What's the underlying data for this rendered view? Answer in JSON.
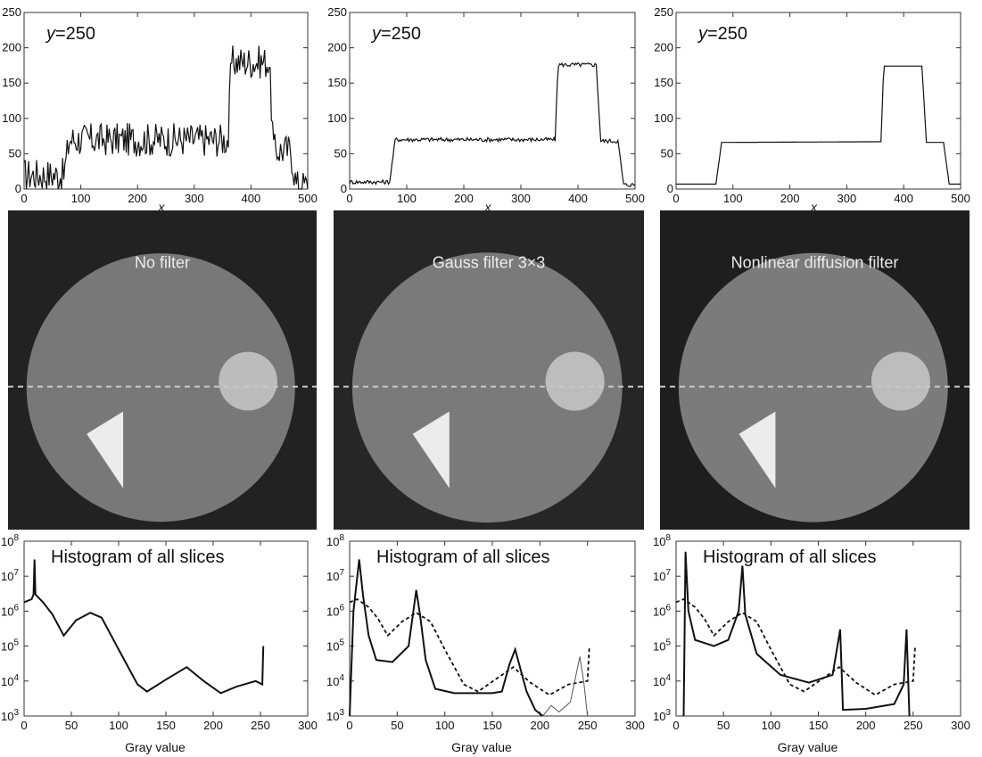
{
  "profile_charts": [
    {
      "type": "line",
      "annotation": "y=250",
      "xlabel": "x",
      "xlim": [
        0,
        500
      ],
      "ylim": [
        0,
        250
      ],
      "xticks": [
        0,
        100,
        200,
        300,
        400,
        500
      ],
      "yticks": [
        0,
        50,
        100,
        150,
        200,
        250
      ],
      "segments": [
        [
          0,
          20
        ],
        [
          70,
          20
        ],
        [
          80,
          70
        ],
        [
          360,
          70
        ],
        [
          365,
          180
        ],
        [
          432,
          180
        ],
        [
          440,
          55
        ],
        [
          470,
          55
        ],
        [
          480,
          5
        ],
        [
          500,
          5
        ]
      ],
      "noise": 24
    },
    {
      "type": "line",
      "annotation": "y=250",
      "xlabel": "x",
      "xlim": [
        0,
        500
      ],
      "ylim": [
        0,
        250
      ],
      "xticks": [
        0,
        100,
        200,
        300,
        400,
        500
      ],
      "yticks": [
        0,
        50,
        100,
        150,
        200,
        250
      ],
      "segments": [
        [
          0,
          10
        ],
        [
          70,
          10
        ],
        [
          80,
          70
        ],
        [
          360,
          70
        ],
        [
          365,
          176
        ],
        [
          432,
          176
        ],
        [
          440,
          68
        ],
        [
          470,
          68
        ],
        [
          480,
          6
        ],
        [
          500,
          6
        ]
      ],
      "noise": 3
    },
    {
      "type": "line",
      "annotation": "y=250",
      "xlabel": "x",
      "xlim": [
        0,
        500
      ],
      "ylim": [
        0,
        250
      ],
      "xticks": [
        0,
        100,
        200,
        300,
        400,
        500
      ],
      "yticks": [
        0,
        50,
        100,
        150,
        200,
        250
      ],
      "segments": [
        [
          0,
          7
        ],
        [
          70,
          7
        ],
        [
          80,
          66
        ],
        [
          360,
          67
        ],
        [
          365,
          174
        ],
        [
          432,
          174
        ],
        [
          440,
          66
        ],
        [
          470,
          66
        ],
        [
          480,
          7
        ],
        [
          500,
          7
        ]
      ],
      "noise": 0
    }
  ],
  "images": [
    {
      "title": "No filter",
      "background": "#222222",
      "disc": "#787878",
      "insert": "#bcbcbc",
      "triangle": "#ececec"
    },
    {
      "title": "Gauss filter 3×3",
      "background": "#262626",
      "disc": "#7a7a7a",
      "insert": "#bdbdbd",
      "triangle": "#ececec"
    },
    {
      "title": "Nonlinear diffusion filter",
      "background": "#1e1e1e",
      "disc": "#7b7b7b",
      "insert": "#bdbdbd",
      "triangle": "#ececec"
    }
  ],
  "histogram_charts": [
    {
      "type": "line",
      "annotation": "Histogram of all slices",
      "xlabel": "Gray value",
      "xlim": [
        0,
        300
      ],
      "yscale": "log",
      "ylim": [
        1000,
        100000000
      ],
      "xticks": [
        0,
        50,
        100,
        150,
        200,
        250,
        300
      ],
      "ytick_bases": [
        "10",
        "10",
        "10",
        "10",
        "10",
        "10"
      ],
      "ytick_exponents": [
        "3",
        "4",
        "5",
        "6",
        "7",
        "8"
      ],
      "series": [
        {
          "style": "solid",
          "points": [
            [
              0,
              1800000
            ],
            [
              8,
              2200000
            ],
            [
              10,
              3000000
            ],
            [
              11,
              30000000
            ],
            [
              12,
              3000000
            ],
            [
              20,
              1800000
            ],
            [
              30,
              800000
            ],
            [
              42,
              200000
            ],
            [
              55,
              550000
            ],
            [
              70,
              900000
            ],
            [
              82,
              650000
            ],
            [
              100,
              80000
            ],
            [
              120,
              8000
            ],
            [
              130,
              5000
            ],
            [
              150,
              11000
            ],
            [
              172,
              25000
            ],
            [
              190,
              10000
            ],
            [
              208,
              4500
            ],
            [
              225,
              7000
            ],
            [
              245,
              10000
            ],
            [
              252,
              8000
            ],
            [
              253,
              100000
            ]
          ]
        }
      ]
    },
    {
      "type": "line",
      "annotation": "Histogram of all slices",
      "xlabel": "Gray value",
      "xlim": [
        0,
        300
      ],
      "yscale": "log",
      "ylim": [
        1000,
        100000000
      ],
      "xticks": [
        0,
        50,
        100,
        150,
        200,
        250,
        300
      ],
      "ytick_bases": [
        "10",
        "10",
        "10",
        "10",
        "10",
        "10"
      ],
      "ytick_exponents": [
        "3",
        "4",
        "5",
        "6",
        "7",
        "8"
      ],
      "series": [
        {
          "style": "dashed",
          "points": [
            [
              0,
              1800000
            ],
            [
              8,
              2200000
            ],
            [
              20,
              1300000
            ],
            [
              30,
              600000
            ],
            [
              40,
              200000
            ],
            [
              55,
              500000
            ],
            [
              70,
              900000
            ],
            [
              85,
              500000
            ],
            [
              100,
              80000
            ],
            [
              120,
              8000
            ],
            [
              135,
              5000
            ],
            [
              155,
              12000
            ],
            [
              172,
              25000
            ],
            [
              190,
              9000
            ],
            [
              210,
              4000
            ],
            [
              230,
              8000
            ],
            [
              250,
              10000
            ],
            [
              252,
              100000
            ]
          ]
        },
        {
          "style": "solid",
          "points": [
            [
              0,
              1000
            ],
            [
              4,
              1000000
            ],
            [
              10,
              30000000
            ],
            [
              14,
              3000000
            ],
            [
              20,
              200000
            ],
            [
              28,
              40000
            ],
            [
              45,
              35000
            ],
            [
              62,
              100000
            ],
            [
              70,
              4000000
            ],
            [
              74,
              800000
            ],
            [
              80,
              40000
            ],
            [
              90,
              6000
            ],
            [
              110,
              4500
            ],
            [
              150,
              4500
            ],
            [
              160,
              5000
            ],
            [
              168,
              30000
            ],
            [
              174,
              80000
            ],
            [
              180,
              20000
            ],
            [
              186,
              5000
            ],
            [
              195,
              1500
            ],
            [
              203,
              1000
            ]
          ]
        },
        {
          "style": "thin",
          "points": [
            [
              203,
              1000
            ],
            [
              212,
              2000
            ],
            [
              220,
              1300
            ],
            [
              232,
              2500
            ],
            [
              242,
              50000
            ],
            [
              246,
              10000
            ],
            [
              250,
              1000
            ]
          ]
        }
      ]
    },
    {
      "type": "line",
      "annotation": "Histogram of all slices",
      "xlabel": "Gray value",
      "xlim": [
        0,
        300
      ],
      "yscale": "log",
      "ylim": [
        1000,
        100000000
      ],
      "xticks": [
        0,
        50,
        100,
        150,
        200,
        250,
        300
      ],
      "ytick_bases": [
        "10",
        "10",
        "10",
        "10",
        "10",
        "10"
      ],
      "ytick_exponents": [
        "3",
        "4",
        "5",
        "6",
        "7",
        "8"
      ],
      "series": [
        {
          "style": "dashed",
          "points": [
            [
              0,
              1800000
            ],
            [
              8,
              2200000
            ],
            [
              20,
              1300000
            ],
            [
              30,
              600000
            ],
            [
              40,
              200000
            ],
            [
              55,
              500000
            ],
            [
              70,
              900000
            ],
            [
              85,
              500000
            ],
            [
              100,
              80000
            ],
            [
              120,
              8000
            ],
            [
              135,
              5000
            ],
            [
              155,
              12000
            ],
            [
              172,
              25000
            ],
            [
              190,
              9000
            ],
            [
              210,
              4000
            ],
            [
              230,
              8000
            ],
            [
              250,
              10000
            ],
            [
              252,
              100000
            ]
          ]
        },
        {
          "style": "solid",
          "points": [
            [
              8,
              1000
            ],
            [
              10,
              50000000
            ],
            [
              13,
              1000000
            ],
            [
              20,
              150000
            ],
            [
              40,
              100000
            ],
            [
              55,
              150000
            ],
            [
              66,
              1000000
            ],
            [
              70,
              20000000
            ],
            [
              73,
              800000
            ],
            [
              85,
              60000
            ],
            [
              110,
              15000
            ],
            [
              140,
              9000
            ],
            [
              165,
              15000
            ],
            [
              173,
              300000
            ],
            [
              176,
              1500
            ],
            [
              200,
              1600
            ],
            [
              230,
              2200
            ],
            [
              240,
              8000
            ],
            [
              243,
              300000
            ],
            [
              246,
              1000
            ]
          ]
        }
      ]
    }
  ]
}
